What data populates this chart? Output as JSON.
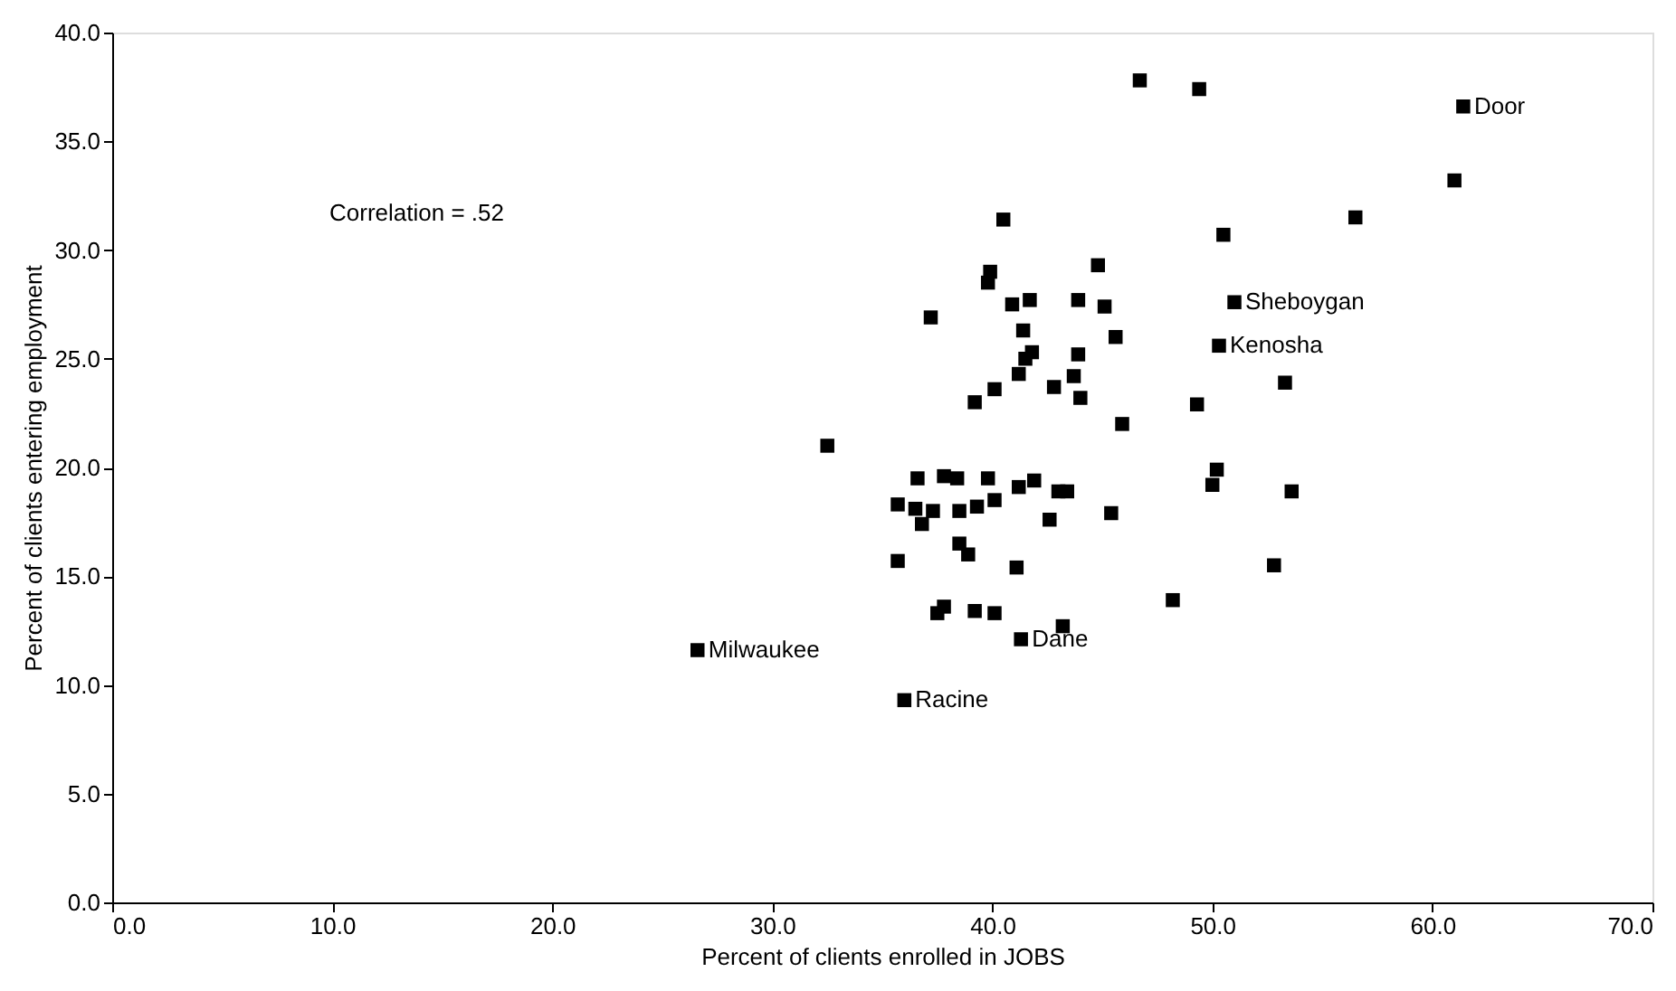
{
  "chart_data": {
    "type": "scatter",
    "xlabel": "Percent of clients enrolled in JOBS",
    "ylabel": "Percent of clients entering employment",
    "series": [
      {
        "color": "#000000",
        "x": [
          46.7,
          49.4,
          61.4,
          61.0,
          56.5,
          50.5,
          40.5,
          39.9,
          39.8,
          44.8,
          37.2,
          40.9,
          41.7,
          43.9,
          45.1,
          41.4,
          45.6,
          41.8,
          41.5,
          43.9,
          41.2,
          43.7,
          42.8,
          40.1,
          39.2,
          44.0,
          45.9,
          49.3,
          51.0,
          50.3,
          53.3,
          32.5,
          36.6,
          37.8,
          38.4,
          39.8,
          41.2,
          41.9,
          43.0,
          43.4,
          35.7,
          36.5,
          37.3,
          36.8,
          38.5,
          39.3,
          40.1,
          42.6,
          45.4,
          50.2,
          50.0,
          53.6,
          35.7,
          38.5,
          38.9,
          41.1,
          52.8,
          48.2,
          37.5,
          37.8,
          39.2,
          40.1,
          43.2,
          41.3,
          26.6,
          36.0
        ],
        "values": [
          37.8,
          37.4,
          36.6,
          33.2,
          31.5,
          30.7,
          31.4,
          29.0,
          28.5,
          29.3,
          26.9,
          27.5,
          27.7,
          27.7,
          27.4,
          26.3,
          26.0,
          25.3,
          25.0,
          25.2,
          24.3,
          24.2,
          23.7,
          23.6,
          23.0,
          23.2,
          22.0,
          22.9,
          27.6,
          25.6,
          23.9,
          21.0,
          19.5,
          19.6,
          19.5,
          19.5,
          19.1,
          19.4,
          18.9,
          18.9,
          18.3,
          18.1,
          18.0,
          17.4,
          18.0,
          18.2,
          18.5,
          17.6,
          17.9,
          19.9,
          19.2,
          18.9,
          15.7,
          16.5,
          16.0,
          15.4,
          15.5,
          13.9,
          13.3,
          13.6,
          13.4,
          13.3,
          12.7,
          12.1,
          11.6,
          9.3
        ]
      }
    ],
    "marker": "square",
    "xlim": [
      0,
      70
    ],
    "xticks": [
      {
        "value": 0,
        "label": "0.0"
      },
      {
        "value": 10,
        "label": "10.0"
      },
      {
        "value": 20,
        "label": "20.0"
      },
      {
        "value": 30,
        "label": "30.0"
      },
      {
        "value": 40,
        "label": "40.0"
      },
      {
        "value": 50,
        "label": "50.0"
      },
      {
        "value": 60,
        "label": "60.0"
      },
      {
        "value": 70,
        "label": "70.0"
      }
    ],
    "ylim": [
      0,
      40
    ],
    "yticks": [
      {
        "value": 0,
        "label": "0.0"
      },
      {
        "value": 5,
        "label": "5.0"
      },
      {
        "value": 10,
        "label": "10.0"
      },
      {
        "value": 15,
        "label": "15.0"
      },
      {
        "value": 20,
        "label": "20.0"
      },
      {
        "value": 25,
        "label": "25.0"
      },
      {
        "value": 30,
        "label": "30.0"
      },
      {
        "value": 35,
        "label": "35.0"
      },
      {
        "value": 40,
        "label": "40.0"
      }
    ],
    "grid": false,
    "annotations": [
      "Correlation = .52",
      {
        "text": "Door",
        "x": 61.4,
        "y": 36.6
      },
      {
        "text": "Sheboygan",
        "x": 51.0,
        "y": 27.6
      },
      {
        "text": "Kenosha",
        "x": 50.3,
        "y": 25.6
      },
      {
        "text": "Dane",
        "x": 41.3,
        "y": 12.1
      },
      {
        "text": "Milwaukee",
        "x": 26.6,
        "y": 11.6
      },
      {
        "text": "Racine",
        "x": 36.0,
        "y": 9.3
      }
    ]
  }
}
